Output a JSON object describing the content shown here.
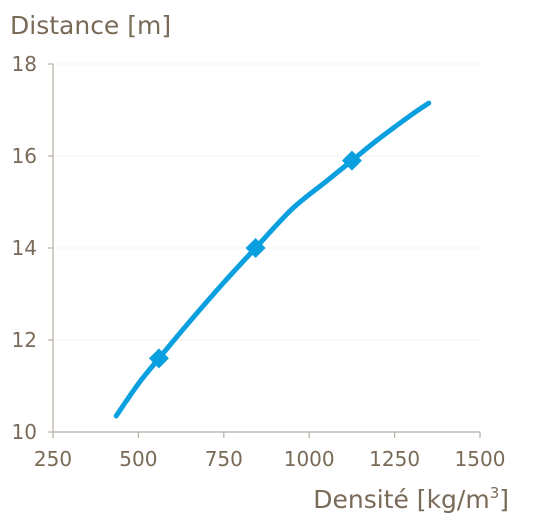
{
  "chart_data": {
    "type": "line",
    "title": "",
    "ylabel": "Distance [m]",
    "xlabel_main": "Densité [kg/m",
    "xlabel_sup": "3",
    "xlabel_end": "]",
    "xlim": [
      250,
      1500
    ],
    "ylim": [
      10,
      18
    ],
    "x_ticks": [
      250,
      500,
      750,
      1000,
      1250,
      1500
    ],
    "x_tick_labels": [
      "250",
      "500",
      "750",
      "1000",
      "1250",
      "1500"
    ],
    "y_ticks": [
      10,
      12,
      14,
      16,
      18
    ],
    "y_tick_labels": [
      "10",
      "12",
      "14",
      "16",
      "18"
    ],
    "grid": "horizontal dotted",
    "series": [
      {
        "color": "#0aa0e0",
        "x": [
          435,
          500,
          560,
          650,
          750,
          843,
          950,
          1050,
          1125,
          1200,
          1300,
          1350
        ],
        "y": [
          10.35,
          11.05,
          11.6,
          12.4,
          13.25,
          14.0,
          14.85,
          15.45,
          15.9,
          16.35,
          16.9,
          17.15
        ],
        "markers": {
          "x": [
            560,
            843,
            1125
          ],
          "y": [
            11.6,
            14.0,
            15.9
          ]
        }
      }
    ],
    "colors": {
      "text": "#7a6a58",
      "axis": "#b8aea4",
      "grid": "#d9d3cd",
      "line": "#0aa0e0"
    }
  }
}
